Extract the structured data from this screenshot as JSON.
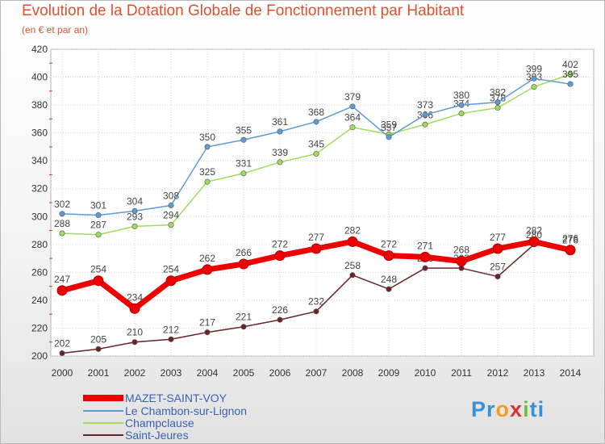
{
  "chart_data": {
    "type": "line",
    "title": "Evolution de la Dotation Globale de Fonctionnement par Habitant",
    "subtitle": "(en € et par an)",
    "x": [
      "2000",
      "2001",
      "2002",
      "2003",
      "2004",
      "2005",
      "2006",
      "2007",
      "2008",
      "2009",
      "2010",
      "2011",
      "2012",
      "2013",
      "2014"
    ],
    "ylim": [
      200,
      420
    ],
    "yticks": [
      200,
      220,
      240,
      260,
      280,
      300,
      320,
      340,
      360,
      380,
      400,
      420
    ],
    "grid": true,
    "legend_position": "bottom-left",
    "series": [
      {
        "name": "MAZET-SAINT-VOY",
        "color": "#ee0000",
        "values": [
          247,
          254,
          234,
          254,
          262,
          266,
          272,
          277,
          282,
          272,
          271,
          268,
          277,
          282,
          276
        ]
      },
      {
        "name": "Le Chambon-sur-Lignon",
        "color": "#5e9bd5",
        "values": [
          302,
          301,
          304,
          308,
          350,
          355,
          361,
          368,
          379,
          357,
          373,
          380,
          382,
          399,
          395
        ]
      },
      {
        "name": "Champclause",
        "color": "#9fdd5a",
        "values": [
          288,
          287,
          293,
          294,
          325,
          331,
          339,
          345,
          364,
          359,
          366,
          374,
          378,
          393,
          402
        ]
      },
      {
        "name": "Saint-Jeures",
        "color": "#6b2326",
        "values": [
          202,
          205,
          210,
          212,
          217,
          221,
          226,
          232,
          258,
          248,
          263,
          263,
          257,
          280,
          276
        ]
      }
    ]
  },
  "branding": {
    "logo_text": "Proxiti"
  }
}
